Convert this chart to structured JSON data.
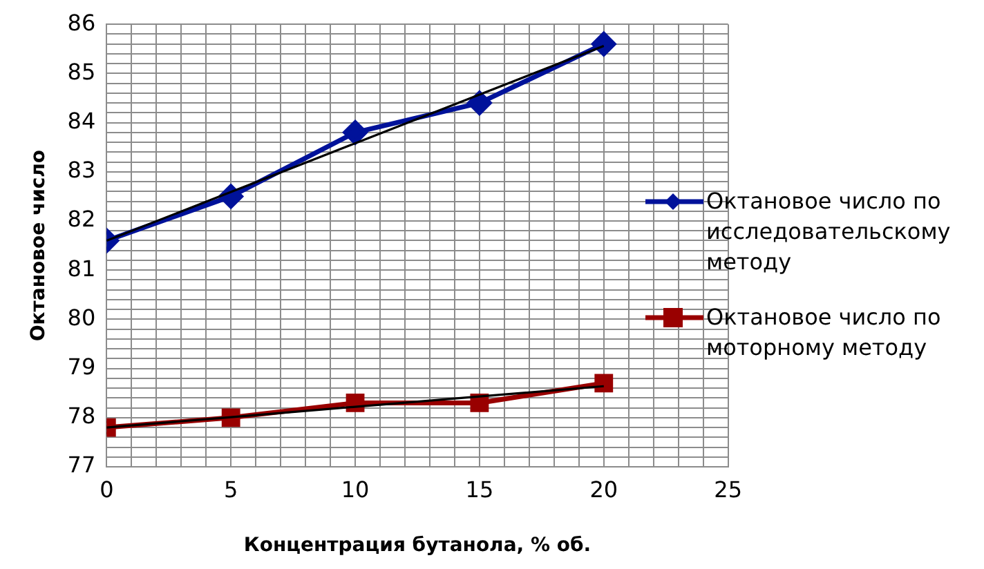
{
  "chart_data": {
    "type": "line",
    "xlabel": "Концентрация бутанола, % об.",
    "ylabel": "Октановое число",
    "xlim": [
      0,
      25
    ],
    "xticks": [
      0,
      {
        "value": 1,
        "label": null
      },
      {
        "value": 2,
        "label": null
      },
      {
        "value": 3,
        "label": null
      },
      {
        "value": 4,
        "label": null
      },
      5,
      {
        "value": 6,
        "label": null
      },
      {
        "value": 7,
        "label": null
      },
      {
        "value": 8,
        "label": null
      },
      {
        "value": 9,
        "label": null
      },
      10,
      {
        "value": 11,
        "label": null
      },
      {
        "value": 12,
        "label": null
      },
      {
        "value": 13,
        "label": null
      },
      {
        "value": 14,
        "label": null
      },
      15,
      {
        "value": 16,
        "label": null
      },
      {
        "value": 17,
        "label": null
      },
      {
        "value": 18,
        "label": null
      },
      {
        "value": 19,
        "label": null
      },
      20,
      {
        "value": 21,
        "label": null
      },
      {
        "value": 22,
        "label": null
      },
      {
        "value": 23,
        "label": null
      },
      {
        "value": 24,
        "label": null
      },
      25
    ],
    "ylim": [
      77,
      86
    ],
    "yticks": [
      77,
      {
        "value": 77.2,
        "label": null
      },
      {
        "value": 77.4,
        "label": null
      },
      {
        "value": 77.6,
        "label": null
      },
      {
        "value": 77.8,
        "label": null
      },
      78,
      {
        "value": 78.2,
        "label": null
      },
      {
        "value": 78.4,
        "label": null
      },
      {
        "value": 78.6,
        "label": null
      },
      {
        "value": 78.8,
        "label": null
      },
      79,
      {
        "value": 79.2,
        "label": null
      },
      {
        "value": 79.4,
        "label": null
      },
      {
        "value": 79.6,
        "label": null
      },
      {
        "value": 79.8,
        "label": null
      },
      80,
      {
        "value": 80.2,
        "label": null
      },
      {
        "value": 80.4,
        "label": null
      },
      {
        "value": 80.6,
        "label": null
      },
      {
        "value": 80.8,
        "label": null
      },
      81,
      {
        "value": 81.2,
        "label": null
      },
      {
        "value": 81.4,
        "label": null
      },
      {
        "value": 81.6,
        "label": null
      },
      {
        "value": 81.8,
        "label": null
      },
      82,
      {
        "value": 82.2,
        "label": null
      },
      {
        "value": 82.4,
        "label": null
      },
      {
        "value": 82.6,
        "label": null
      },
      {
        "value": 82.8,
        "label": null
      },
      83,
      {
        "value": 83.2,
        "label": null
      },
      {
        "value": 83.4,
        "label": null
      },
      {
        "value": 83.6,
        "label": null
      },
      {
        "value": 83.8,
        "label": null
      },
      84,
      {
        "value": 84.2,
        "label": null
      },
      {
        "value": 84.4,
        "label": null
      },
      {
        "value": 84.6,
        "label": null
      },
      {
        "value": 84.8,
        "label": null
      },
      85,
      {
        "value": 85.2,
        "label": null
      },
      {
        "value": 85.4,
        "label": null
      },
      {
        "value": 85.6,
        "label": null
      },
      {
        "value": 85.8,
        "label": null
      },
      86
    ],
    "grid": true,
    "legend": "right",
    "x": [
      0,
      5,
      10,
      15,
      20
    ],
    "series": [
      {
        "name": "Октановое число по исследовательскому методу",
        "color": "#00129a",
        "marker": "diamond",
        "values": [
          81.6,
          82.5,
          83.8,
          84.4,
          85.6
        ]
      },
      {
        "name": "Октановое число по моторному методу",
        "color": "#990000",
        "marker": "square",
        "values": [
          77.8,
          78.0,
          78.3,
          78.3,
          78.7
        ]
      },
      {
        "color": "#000000",
        "marker": "none",
        "values": [
          81.6,
          82.59,
          83.58,
          84.57,
          85.56
        ]
      },
      {
        "color": "#000000",
        "marker": "none",
        "values": [
          77.8,
          78.01,
          78.22,
          78.43,
          78.64
        ]
      }
    ]
  }
}
